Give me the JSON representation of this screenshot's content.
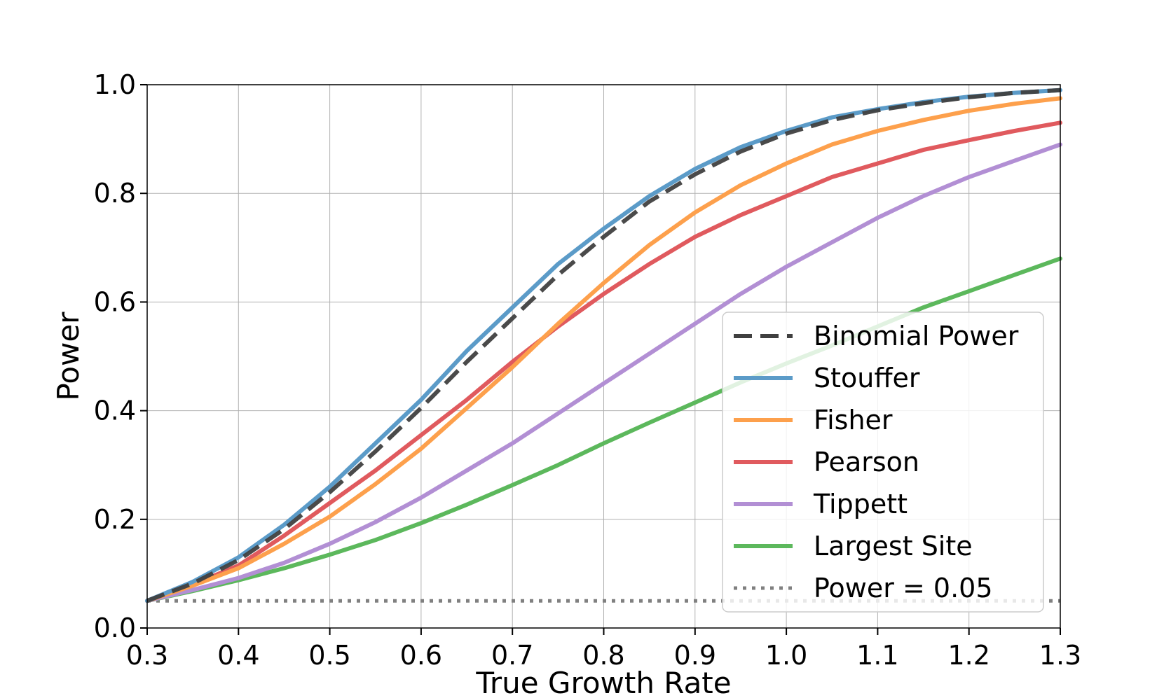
{
  "chart_data": {
    "type": "line",
    "title": "",
    "xlabel": "True Growth Rate",
    "ylabel": "Power",
    "xlim": [
      0.3,
      1.3
    ],
    "ylim": [
      0.0,
      1.0
    ],
    "grid": true,
    "legend_position": "bottom-right",
    "x_ticks": [
      0.3,
      0.4,
      0.5,
      0.6,
      0.7,
      0.8,
      0.9,
      1.0,
      1.1,
      1.2,
      1.3
    ],
    "x_tick_labels": [
      "0.3",
      "0.4",
      "0.5",
      "0.6",
      "0.7",
      "0.8",
      "0.9",
      "1.0",
      "1.1",
      "1.2",
      "1.3"
    ],
    "y_ticks": [
      0.0,
      0.2,
      0.4,
      0.6,
      0.8,
      1.0
    ],
    "y_tick_labels": [
      "0.0",
      "0.2",
      "0.4",
      "0.6",
      "0.8",
      "1.0"
    ],
    "x": [
      0.3,
      0.35,
      0.4,
      0.45,
      0.5,
      0.55,
      0.6,
      0.65,
      0.7,
      0.75,
      0.8,
      0.85,
      0.9,
      0.95,
      1.0,
      1.05,
      1.1,
      1.15,
      1.2,
      1.25,
      1.3
    ],
    "series": [
      {
        "name": "Stouffer",
        "color": "#5b9bc8",
        "style": "solid",
        "values": [
          0.05,
          0.085,
          0.13,
          0.19,
          0.26,
          0.34,
          0.42,
          0.51,
          0.59,
          0.67,
          0.735,
          0.795,
          0.845,
          0.885,
          0.915,
          0.94,
          0.955,
          0.968,
          0.978,
          0.985,
          0.99
        ]
      },
      {
        "name": "Fisher",
        "color": "#fda04c",
        "style": "solid",
        "values": [
          0.05,
          0.078,
          0.11,
          0.155,
          0.205,
          0.265,
          0.33,
          0.405,
          0.48,
          0.56,
          0.635,
          0.705,
          0.765,
          0.815,
          0.855,
          0.89,
          0.915,
          0.935,
          0.952,
          0.965,
          0.975
        ]
      },
      {
        "name": "Pearson",
        "color": "#e05a5e",
        "style": "solid",
        "values": [
          0.05,
          0.08,
          0.115,
          0.17,
          0.23,
          0.29,
          0.355,
          0.42,
          0.49,
          0.555,
          0.615,
          0.67,
          0.72,
          0.76,
          0.795,
          0.83,
          0.855,
          0.88,
          0.898,
          0.915,
          0.93
        ]
      },
      {
        "name": "Tippett",
        "color": "#b28fd4",
        "style": "solid",
        "values": [
          0.05,
          0.07,
          0.092,
          0.12,
          0.155,
          0.195,
          0.24,
          0.29,
          0.34,
          0.395,
          0.45,
          0.505,
          0.56,
          0.615,
          0.665,
          0.71,
          0.755,
          0.795,
          0.83,
          0.86,
          0.89
        ]
      },
      {
        "name": "Largest Site",
        "color": "#5cb85c",
        "style": "solid",
        "values": [
          0.05,
          0.068,
          0.088,
          0.11,
          0.135,
          0.162,
          0.193,
          0.227,
          0.263,
          0.3,
          0.34,
          0.378,
          0.415,
          0.452,
          0.487,
          0.52,
          0.555,
          0.59,
          0.62,
          0.65,
          0.68
        ]
      },
      {
        "name": "Binomial Power",
        "color": "#404040",
        "style": "dashed",
        "values": [
          0.05,
          0.082,
          0.125,
          0.182,
          0.25,
          0.325,
          0.405,
          0.49,
          0.57,
          0.65,
          0.72,
          0.785,
          0.835,
          0.877,
          0.91,
          0.935,
          0.953,
          0.966,
          0.977,
          0.985,
          0.99
        ]
      },
      {
        "name": "Power = 0.05",
        "color": "#808080",
        "style": "dotted",
        "values": [
          0.05,
          0.05,
          0.05,
          0.05,
          0.05,
          0.05,
          0.05,
          0.05,
          0.05,
          0.05,
          0.05,
          0.05,
          0.05,
          0.05,
          0.05,
          0.05,
          0.05,
          0.05,
          0.05,
          0.05,
          0.05
        ]
      }
    ],
    "legend_order": [
      "Binomial Power",
      "Stouffer",
      "Fisher",
      "Pearson",
      "Tippett",
      "Largest Site",
      "Power = 0.05"
    ]
  }
}
